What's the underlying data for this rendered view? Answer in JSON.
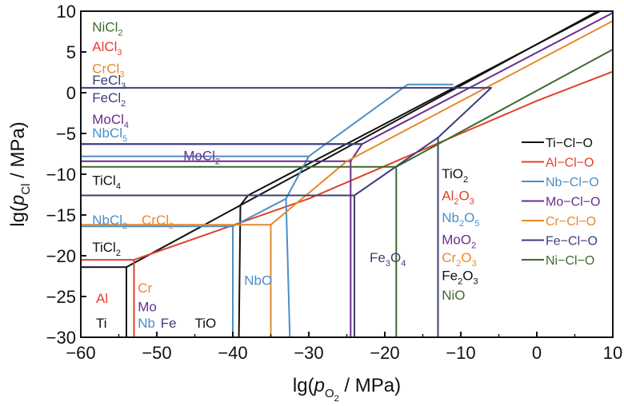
{
  "chart_data": {
    "type": "line",
    "title": "",
    "xlabel": {
      "prefix": "lg(",
      "italic": "p",
      "sub": "O",
      "subsub": "2",
      "suffix": " / MPa)"
    },
    "ylabel": {
      "prefix": "lg(",
      "italic": "p",
      "sub": "Cl",
      "suffix": " / MPa)"
    },
    "xlim": [
      -60,
      10
    ],
    "ylim": [
      -30,
      10
    ],
    "x_ticks": [
      -60,
      -50,
      -40,
      -30,
      -20,
      -10,
      0,
      10
    ],
    "y_ticks": [
      10,
      5,
      0,
      -5,
      -10,
      -15,
      -20,
      -25,
      -30
    ],
    "grid": false,
    "legend_position": "right",
    "series": [
      {
        "name": "Ti−Cl−O",
        "color": "#111111",
        "lines": [
          [
            [
              -60,
              -21.4
            ],
            [
              -54,
              -21.4
            ],
            [
              -54,
              -30
            ]
          ],
          [
            [
              -54,
              -21.4
            ],
            [
              10,
              11
            ]
          ],
          [
            [
              -60,
              -12.6
            ],
            [
              -38,
              -12.6
            ],
            [
              -39,
              -13.8
            ],
            [
              -39.2,
              -30
            ]
          ],
          [
            [
              -38,
              -12.6
            ],
            [
              10,
              10.8
            ]
          ]
        ]
      },
      {
        "name": "Al−Cl−O",
        "color": "#e0412b",
        "lines": [
          [
            [
              -60,
              -20.5
            ],
            [
              -53,
              -20.5
            ],
            [
              -53,
              -30
            ]
          ],
          [
            [
              -53,
              -20.5
            ],
            [
              -30,
              -13
            ],
            [
              -20,
              -9
            ],
            [
              -10,
              -5
            ],
            [
              0,
              -1
            ],
            [
              10,
              2.6
            ]
          ]
        ]
      },
      {
        "name": "Nb−Cl−O",
        "color": "#4a8fc8",
        "lines": [
          [
            [
              -60,
              -7.8
            ],
            [
              -30,
              -7.8
            ],
            [
              -33,
              -13
            ],
            [
              -40,
              -16.4
            ]
          ],
          [
            [
              -60,
              -16.4
            ],
            [
              -40,
              -16.4
            ],
            [
              -40,
              -30
            ]
          ],
          [
            [
              -33,
              -13
            ],
            [
              -32.5,
              -30
            ]
          ],
          [
            [
              -30,
              -7.8
            ],
            [
              -17,
              1
            ],
            [
              -11,
              1
            ]
          ]
        ]
      },
      {
        "name": "Mo−Cl−O",
        "color": "#6a2d8c",
        "lines": [
          [
            [
              -60,
              -8.4
            ],
            [
              -24.5,
              -8.4
            ]
          ],
          [
            [
              -60,
              -6.3
            ],
            [
              -23,
              -6.3
            ]
          ],
          [
            [
              -24.5,
              -8.4
            ],
            [
              -24.5,
              -30
            ]
          ],
          [
            [
              -23,
              -6.3
            ],
            [
              -24.5,
              -8.4
            ]
          ],
          [
            [
              -23,
              -6.3
            ],
            [
              10,
              9.8
            ]
          ]
        ]
      },
      {
        "name": "Cr−Cl−O",
        "color": "#e8892c",
        "lines": [
          [
            [
              -60,
              -16.2
            ],
            [
              -35,
              -16.2
            ],
            [
              -35,
              -30
            ]
          ],
          [
            [
              -35,
              -16.2
            ],
            [
              -25,
              -8.4
            ],
            [
              10,
              8.8
            ]
          ]
        ]
      },
      {
        "name": "Fe−Cl−O",
        "color": "#3b3f7c",
        "lines": [
          [
            [
              -60,
              0.6
            ],
            [
              -6,
              0.6
            ],
            [
              -13,
              -5.5
            ],
            [
              -24,
              -12.6
            ],
            [
              -60,
              -12.6
            ]
          ],
          [
            [
              -24,
              -12.6
            ],
            [
              -24,
              -30
            ]
          ],
          [
            [
              -13,
              -5.5
            ],
            [
              -13,
              -30
            ]
          ],
          [
            [
              -60,
              -6.3
            ],
            [
              -23,
              -6.3
            ]
          ]
        ]
      },
      {
        "name": "Ni−Cl−O",
        "color": "#3f6a2b",
        "lines": [
          [
            [
              -60,
              -9.1
            ],
            [
              -18.5,
              -9.1
            ],
            [
              -18.5,
              -30
            ]
          ],
          [
            [
              -18.5,
              -9.1
            ],
            [
              10,
              5.3
            ]
          ]
        ]
      }
    ],
    "annotations": [
      {
        "text": "NiCl",
        "sub": "2",
        "x": -58.5,
        "y": 7.5,
        "color": "#3f6a2b"
      },
      {
        "text": "AlCl",
        "sub": "3",
        "x": -58.5,
        "y": 5.1,
        "color": "#e0412b"
      },
      {
        "text": "CrCl",
        "sub": "3",
        "x": -58.5,
        "y": 2.4,
        "color": "#e8892c"
      },
      {
        "text": "FeCl",
        "sub": "3",
        "x": -58.5,
        "y": 1.0,
        "color": "#3b3f7c"
      },
      {
        "text": "FeCl",
        "sub": "2",
        "x": -58.5,
        "y": -1.2,
        "color": "#3b3f7c"
      },
      {
        "text": "MoCl",
        "sub": "4",
        "x": -58.5,
        "y": -3.8,
        "color": "#6a2d8c"
      },
      {
        "text": "NbCl",
        "sub": "5",
        "x": -58.5,
        "y": -5.5,
        "color": "#4a8fc8"
      },
      {
        "text": "MoCl",
        "sub": "2",
        "x": -46.5,
        "y": -8.3,
        "color": "#6a2d8c"
      },
      {
        "text": "TiCl",
        "sub": "4",
        "x": -58.5,
        "y": -11.3,
        "color": "#111111"
      },
      {
        "text": "NbCl",
        "sub": "2",
        "x": -58.5,
        "y": -16.2,
        "color": "#4a8fc8"
      },
      {
        "text": "CrCl",
        "sub": "2",
        "x": -52,
        "y": -16.2,
        "color": "#e8892c"
      },
      {
        "text": "TiCl",
        "sub": "2",
        "x": -58.5,
        "y": -19.5,
        "color": "#111111"
      },
      {
        "text": "Cr",
        "sub": "",
        "x": -52.5,
        "y": -24.5,
        "color": "#e8892c"
      },
      {
        "text": "Al",
        "sub": "",
        "x": -58,
        "y": -25.8,
        "color": "#e0412b"
      },
      {
        "text": "Mo",
        "sub": "",
        "x": -52.5,
        "y": -26.8,
        "color": "#6a2d8c"
      },
      {
        "text": "Ti",
        "sub": "",
        "x": -58,
        "y": -28.8,
        "color": "#111111"
      },
      {
        "text": "Nb",
        "sub": "",
        "x": -52.5,
        "y": -28.8,
        "color": "#4a8fc8"
      },
      {
        "text": "Fe",
        "sub": "",
        "x": -49.5,
        "y": -28.8,
        "color": "#3b3f7c"
      },
      {
        "text": "TiO",
        "sub": "",
        "x": -45,
        "y": -28.8,
        "color": "#111111"
      },
      {
        "text": "NbO",
        "sub": "",
        "x": -38.5,
        "y": -23.6,
        "color": "#4a8fc8"
      },
      {
        "text": "Fe",
        "sub": "3",
        "tail": "O",
        "sub2": "4",
        "x": -22,
        "y": -20.8,
        "color": "#3b3f7c"
      },
      {
        "text": "TiO",
        "sub": "2",
        "x": -12.5,
        "y": -10.5,
        "color": "#111111"
      },
      {
        "text": "Al",
        "sub": "2",
        "tail": "O",
        "sub2": "3",
        "x": -12.5,
        "y": -13.2,
        "color": "#e0412b"
      },
      {
        "text": "Nb",
        "sub": "2",
        "tail": "O",
        "sub2": "5",
        "x": -12.5,
        "y": -15.9,
        "color": "#4a8fc8"
      },
      {
        "text": "MoO",
        "sub": "2",
        "x": -12.5,
        "y": -18.6,
        "color": "#6a2d8c"
      },
      {
        "text": "Cr",
        "sub": "2",
        "tail": "O",
        "sub2": "3",
        "x": -12.5,
        "y": -20.8,
        "color": "#e8892c"
      },
      {
        "text": "Fe",
        "sub": "2",
        "tail": "O",
        "sub2": "3",
        "x": -12.5,
        "y": -23.0,
        "color": "#111111"
      },
      {
        "text": "NiO",
        "sub": "",
        "x": -12.5,
        "y": -25.4,
        "color": "#3f6a2b"
      }
    ]
  }
}
